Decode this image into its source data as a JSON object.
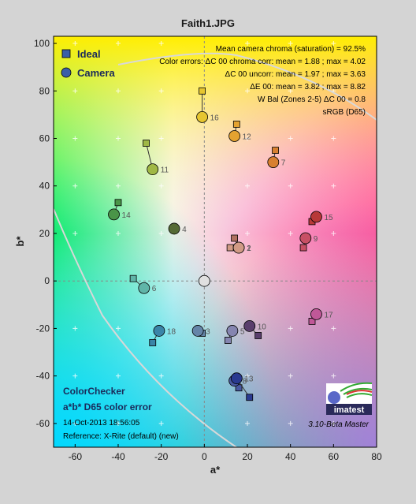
{
  "chart_data": {
    "type": "scatter",
    "title": "Faith1.JPG",
    "xlabel": "a*",
    "ylabel": "b*",
    "xlim": [
      -70,
      80
    ],
    "ylim": [
      -70,
      103
    ],
    "xticks": [
      -60,
      -40,
      -20,
      0,
      20,
      40,
      60,
      80
    ],
    "yticks": [
      -60,
      -40,
      -20,
      0,
      20,
      40,
      60,
      80,
      100
    ],
    "legend": [
      {
        "name": "Ideal",
        "marker": "square"
      },
      {
        "name": "Camera",
        "marker": "circle"
      }
    ],
    "annotations": [
      "Mean camera chroma (saturation) = 92.5%",
      "Color errors: ΔC 00 chroma corr:  mean = 1.88 ;  max = 4.02",
      "ΔC 00 uncorr:  mean = 1.97 ;  max = 3.63",
      "ΔE 00:  mean = 3.82 ;  max = 8.82",
      "W Bal (Zones 2-5) ΔC 00 = 0.8",
      "sRGB (D65)"
    ],
    "caption": {
      "line1": "ColorChecker",
      "line2": "a*b* D65 color error",
      "line3": "14-Oct-2013 18:56:05",
      "line4": "Reference: X-Rite (default) (new)"
    },
    "version": "3.10-Beta  Master",
    "logo": "imatest",
    "points": [
      {
        "label": "1",
        "ideal": [
          14,
          18
        ],
        "camera": [
          16,
          14
        ],
        "color": "#b07060"
      },
      {
        "label": "2",
        "ideal": [
          12,
          14
        ],
        "camera": [
          16,
          14
        ],
        "color": "#d09a85"
      },
      {
        "label": "3",
        "ideal": [
          -1,
          -22
        ],
        "camera": [
          -3,
          -21
        ],
        "color": "#6585a8"
      },
      {
        "label": "4",
        "ideal": [
          -14,
          22
        ],
        "camera": [
          -14,
          22
        ],
        "color": "#556b35"
      },
      {
        "label": "5",
        "ideal": [
          11,
          -25
        ],
        "camera": [
          13,
          -21
        ],
        "color": "#8585b0"
      },
      {
        "label": "6",
        "ideal": [
          -33,
          1
        ],
        "camera": [
          -28,
          -3
        ],
        "color": "#60b5a8"
      },
      {
        "label": "7",
        "ideal": [
          33,
          55
        ],
        "camera": [
          32,
          50
        ],
        "color": "#d88030"
      },
      {
        "label": "8",
        "ideal": [
          16,
          -45
        ],
        "camera": [
          14,
          -42
        ],
        "color": "#4858a0"
      },
      {
        "label": "9",
        "ideal": [
          46,
          14
        ],
        "camera": [
          47,
          18
        ],
        "color": "#c85065"
      },
      {
        "label": "10",
        "ideal": [
          25,
          -23
        ],
        "camera": [
          21,
          -19
        ],
        "color": "#5a3e6c"
      },
      {
        "label": "11",
        "ideal": [
          -27,
          58
        ],
        "camera": [
          -24,
          47
        ],
        "color": "#a0b845"
      },
      {
        "label": "12",
        "ideal": [
          15,
          66
        ],
        "camera": [
          14,
          61
        ],
        "color": "#e4a230"
      },
      {
        "label": "13",
        "ideal": [
          21,
          -49
        ],
        "camera": [
          15,
          -41
        ],
        "color": "#2a3a90"
      },
      {
        "label": "14",
        "ideal": [
          -40,
          33
        ],
        "camera": [
          -42,
          28
        ],
        "color": "#4a9548"
      },
      {
        "label": "15",
        "ideal": [
          50,
          25
        ],
        "camera": [
          52,
          27
        ],
        "color": "#b83838"
      },
      {
        "label": "16",
        "ideal": [
          -1,
          80
        ],
        "camera": [
          -1,
          69
        ],
        "color": "#e6c630"
      },
      {
        "label": "17",
        "ideal": [
          50,
          -17
        ],
        "camera": [
          52,
          -14
        ],
        "color": "#c05898"
      },
      {
        "label": "18",
        "ideal": [
          -24,
          -26
        ],
        "camera": [
          -21,
          -21
        ],
        "color": "#3a85a8"
      },
      {
        "label": "",
        "ideal": [
          0,
          0
        ],
        "camera": [
          0,
          0
        ],
        "color": "#e0e0e0"
      }
    ]
  }
}
